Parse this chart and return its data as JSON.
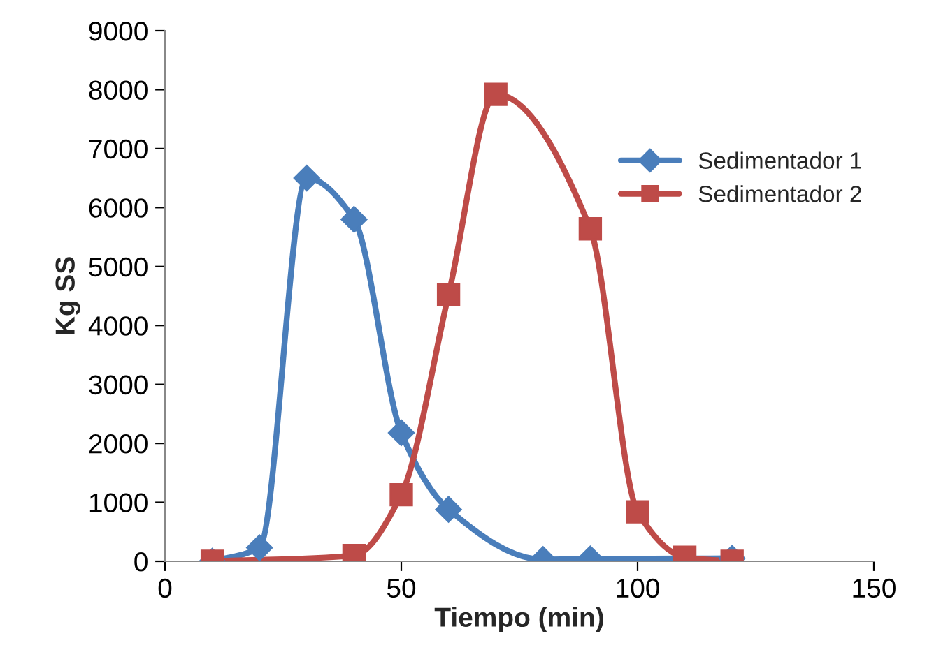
{
  "chart_data": {
    "type": "line",
    "xlabel": "Tiempo (min)",
    "ylabel": "Kg SS",
    "xlim": [
      0,
      150
    ],
    "xticks": [
      0,
      50,
      100,
      150
    ],
    "ylim": [
      0,
      9000
    ],
    "yticks": [
      0,
      1000,
      2000,
      3000,
      4000,
      5000,
      6000,
      7000,
      8000,
      9000
    ],
    "grid": false,
    "legend": "right",
    "series": [
      {
        "name": "Sedimentador 1",
        "color": "#4a7ebb",
        "marker": "diamond",
        "x": [
          10,
          20,
          30,
          40,
          50,
          60,
          80,
          90,
          120
        ],
        "values": [
          0,
          230,
          6500,
          5800,
          2180,
          880,
          30,
          40,
          50
        ]
      },
      {
        "name": "Sedimentador 2",
        "color": "#be4b48",
        "marker": "square",
        "x": [
          10,
          40,
          50,
          60,
          70,
          90,
          100,
          110,
          120
        ],
        "values": [
          0,
          100,
          1130,
          4520,
          7920,
          5640,
          840,
          70,
          0
        ]
      }
    ]
  }
}
